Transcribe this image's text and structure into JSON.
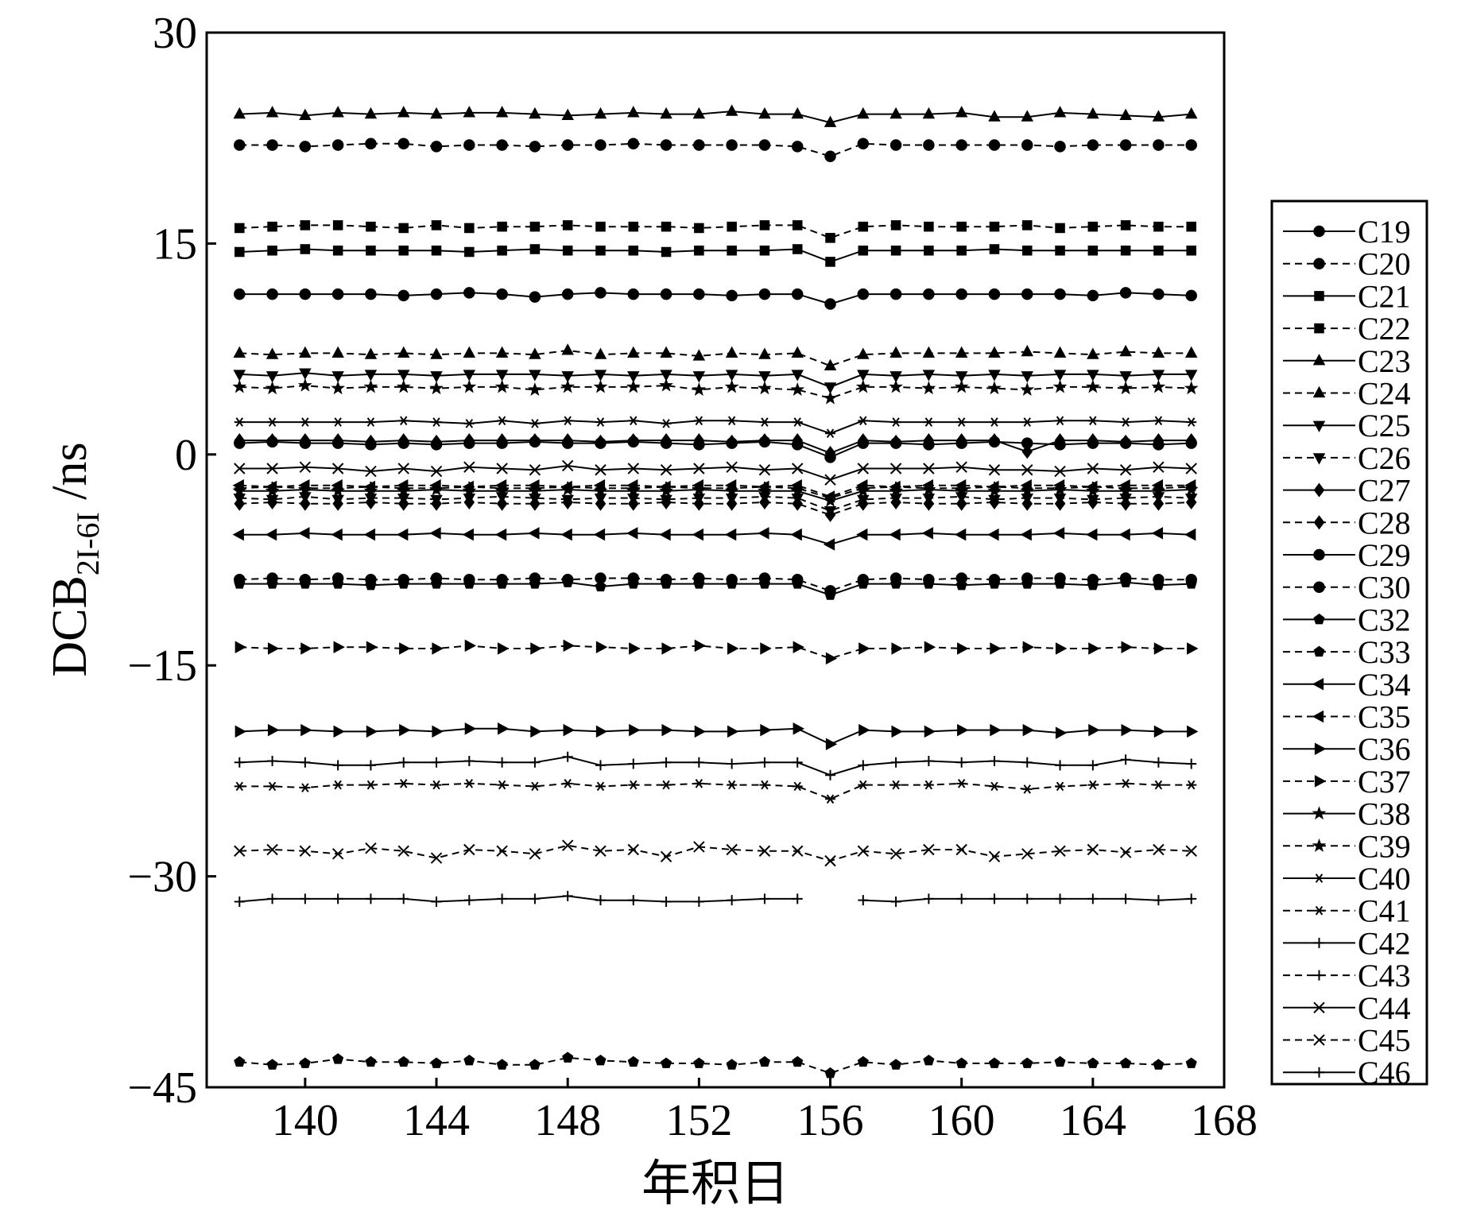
{
  "chart_data": {
    "type": "line",
    "title": "",
    "xlabel": "年积日",
    "ylabel": {
      "main": "DCB",
      "sub": "2I-6I",
      "unit": " /ns"
    },
    "xlim": [
      137,
      168
    ],
    "ylim": [
      -45,
      30
    ],
    "xticks": [
      "140",
      "144",
      "148",
      "152",
      "156",
      "160",
      "164",
      "168"
    ],
    "yticks": [
      "30",
      "15",
      "0",
      "−15",
      "−30",
      "−45"
    ],
    "grid": false,
    "legend_position": "right",
    "x": [
      138,
      139,
      140,
      141,
      142,
      143,
      144,
      145,
      146,
      147,
      148,
      149,
      150,
      151,
      152,
      153,
      154,
      155,
      156,
      157,
      158,
      159,
      160,
      161,
      162,
      163,
      164,
      165,
      166,
      167
    ],
    "series": [
      {
        "name": "C19",
        "marker": "circle",
        "dash": false,
        "base": 0.8,
        "values": [
          0.8,
          0.9,
          0.8,
          0.8,
          0.7,
          0.8,
          0.7,
          0.8,
          0.8,
          0.9,
          0.8,
          0.8,
          0.9,
          0.8,
          0.7,
          0.8,
          0.9,
          0.7,
          -0.2,
          0.8,
          0.8,
          0.7,
          0.8,
          0.9,
          0.8,
          0.7,
          0.8,
          0.8,
          0.7,
          0.8
        ]
      },
      {
        "name": "C20",
        "marker": "circle",
        "dash": true,
        "base": 22.0,
        "values": [
          22.0,
          22.0,
          21.9,
          22.0,
          22.1,
          22.1,
          21.9,
          22.0,
          22.0,
          21.9,
          22.0,
          22.0,
          22.1,
          22.0,
          22.0,
          22.0,
          22.0,
          21.9,
          21.2,
          22.1,
          22.0,
          22.0,
          22.0,
          22.0,
          22.0,
          21.9,
          22.0,
          22.0,
          22.0,
          22.0
        ]
      },
      {
        "name": "C21",
        "marker": "square",
        "dash": false,
        "base": 14.5,
        "values": [
          14.4,
          14.5,
          14.6,
          14.5,
          14.5,
          14.5,
          14.5,
          14.4,
          14.5,
          14.6,
          14.5,
          14.5,
          14.5,
          14.4,
          14.5,
          14.5,
          14.5,
          14.6,
          13.7,
          14.5,
          14.5,
          14.5,
          14.5,
          14.6,
          14.5,
          14.5,
          14.5,
          14.5,
          14.5,
          14.5
        ]
      },
      {
        "name": "C22",
        "marker": "square",
        "dash": true,
        "base": 16.2,
        "values": [
          16.1,
          16.2,
          16.3,
          16.3,
          16.2,
          16.1,
          16.3,
          16.1,
          16.2,
          16.2,
          16.3,
          16.2,
          16.2,
          16.2,
          16.1,
          16.2,
          16.3,
          16.3,
          15.4,
          16.2,
          16.3,
          16.2,
          16.2,
          16.2,
          16.3,
          16.1,
          16.2,
          16.3,
          16.2,
          16.2
        ]
      },
      {
        "name": "C23",
        "marker": "triangle-up",
        "dash": false,
        "base": 24.2,
        "values": [
          24.2,
          24.3,
          24.1,
          24.3,
          24.2,
          24.3,
          24.2,
          24.3,
          24.3,
          24.2,
          24.1,
          24.2,
          24.3,
          24.2,
          24.2,
          24.4,
          24.2,
          24.2,
          23.6,
          24.2,
          24.2,
          24.2,
          24.3,
          24.0,
          24.0,
          24.3,
          24.2,
          24.1,
          24.0,
          24.2
        ]
      },
      {
        "name": "C24",
        "marker": "triangle-up",
        "dash": true,
        "base": 7.2,
        "values": [
          7.2,
          7.1,
          7.2,
          7.2,
          7.1,
          7.2,
          7.1,
          7.2,
          7.2,
          7.1,
          7.4,
          7.1,
          7.2,
          7.2,
          7.0,
          7.2,
          7.1,
          7.2,
          6.3,
          7.1,
          7.2,
          7.2,
          7.2,
          7.2,
          7.3,
          7.2,
          7.1,
          7.3,
          7.2,
          7.2
        ]
      },
      {
        "name": "C25",
        "marker": "triangle-down",
        "dash": false,
        "base": 5.7,
        "values": [
          5.7,
          5.6,
          5.8,
          5.6,
          5.7,
          5.7,
          5.6,
          5.7,
          5.7,
          5.7,
          5.6,
          5.7,
          5.6,
          5.7,
          5.6,
          5.7,
          5.6,
          5.7,
          4.8,
          5.7,
          5.6,
          5.7,
          5.6,
          5.7,
          5.6,
          5.7,
          5.7,
          5.6,
          5.7,
          5.7
        ]
      },
      {
        "name": "C26",
        "marker": "triangle-down",
        "dash": true,
        "base": -3.1,
        "values": [
          -3.1,
          -3.2,
          -3.0,
          -3.2,
          -3.1,
          -3.1,
          -3.2,
          -3.1,
          -3.0,
          -3.1,
          -3.2,
          -3.1,
          -3.1,
          -3.2,
          -3.1,
          -3.1,
          -3.0,
          -3.1,
          -4.0,
          -3.2,
          -3.1,
          -3.1,
          -3.0,
          -3.2,
          -3.1,
          -3.1,
          -3.2,
          -3.1,
          -3.0,
          -3.1
        ]
      },
      {
        "name": "C27",
        "marker": "diamond",
        "dash": false,
        "base": 1.0,
        "values": [
          1.0,
          1.0,
          1.0,
          1.0,
          0.9,
          1.0,
          0.9,
          1.0,
          1.0,
          1.0,
          1.0,
          0.9,
          1.0,
          1.0,
          1.0,
          0.9,
          1.0,
          1.0,
          0.1,
          1.0,
          0.9,
          1.0,
          1.0,
          1.0,
          0.2,
          1.0,
          1.0,
          0.9,
          1.0,
          1.0
        ]
      },
      {
        "name": "C28",
        "marker": "diamond",
        "dash": true,
        "base": -3.5,
        "values": [
          -3.5,
          -3.4,
          -3.5,
          -3.5,
          -3.4,
          -3.5,
          -3.5,
          -3.4,
          -3.5,
          -3.5,
          -3.4,
          -3.5,
          -3.5,
          -3.4,
          -3.5,
          -3.5,
          -3.4,
          -3.5,
          -4.3,
          -3.5,
          -3.4,
          -3.5,
          -3.5,
          -3.4,
          -3.5,
          -3.5,
          -3.4,
          -3.5,
          -3.5,
          -3.4
        ]
      },
      {
        "name": "C29",
        "marker": "circle",
        "dash": false,
        "base": 11.4,
        "values": [
          11.4,
          11.4,
          11.4,
          11.4,
          11.4,
          11.3,
          11.4,
          11.5,
          11.4,
          11.2,
          11.4,
          11.5,
          11.4,
          11.4,
          11.4,
          11.3,
          11.4,
          11.4,
          10.7,
          11.4,
          11.4,
          11.4,
          11.4,
          11.4,
          11.4,
          11.4,
          11.3,
          11.5,
          11.4,
          11.3
        ]
      },
      {
        "name": "C30",
        "marker": "circle",
        "dash": true,
        "base": -8.9,
        "values": [
          -8.9,
          -8.8,
          -8.9,
          -8.8,
          -8.9,
          -8.9,
          -8.8,
          -8.9,
          -8.9,
          -8.8,
          -8.9,
          -8.8,
          -8.8,
          -8.9,
          -8.8,
          -8.9,
          -8.8,
          -8.9,
          -9.7,
          -8.9,
          -8.8,
          -8.9,
          -8.8,
          -8.9,
          -8.8,
          -8.8,
          -8.9,
          -8.8,
          -8.9,
          -8.9
        ]
      },
      {
        "name": "C32",
        "marker": "pentagon",
        "dash": false,
        "base": -9.2,
        "values": [
          -9.2,
          -9.2,
          -9.2,
          -9.2,
          -9.3,
          -9.2,
          -9.2,
          -9.2,
          -9.2,
          -9.2,
          -9.1,
          -9.4,
          -9.2,
          -9.2,
          -9.2,
          -9.2,
          -9.2,
          -9.2,
          -10.0,
          -9.2,
          -9.2,
          -9.2,
          -9.3,
          -9.2,
          -9.2,
          -9.2,
          -9.3,
          -9.1,
          -9.3,
          -9.2
        ]
      },
      {
        "name": "C33",
        "marker": "pentagon",
        "dash": true,
        "base": -43.3,
        "values": [
          -43.2,
          -43.4,
          -43.3,
          -43.0,
          -43.2,
          -43.2,
          -43.3,
          -43.1,
          -43.4,
          -43.4,
          -42.9,
          -43.1,
          -43.2,
          -43.3,
          -43.3,
          -43.4,
          -43.2,
          -43.2,
          -44.0,
          -43.2,
          -43.4,
          -43.1,
          -43.3,
          -43.3,
          -43.3,
          -43.2,
          -43.3,
          -43.3,
          -43.4,
          -43.3
        ]
      },
      {
        "name": "C34",
        "marker": "triangle-left",
        "dash": false,
        "base": -5.7,
        "values": [
          -5.7,
          -5.7,
          -5.6,
          -5.7,
          -5.7,
          -5.7,
          -5.6,
          -5.7,
          -5.7,
          -5.6,
          -5.7,
          -5.7,
          -5.6,
          -5.7,
          -5.7,
          -5.7,
          -5.6,
          -5.7,
          -6.4,
          -5.7,
          -5.7,
          -5.6,
          -5.7,
          -5.7,
          -5.7,
          -5.6,
          -5.7,
          -5.7,
          -5.6,
          -5.7
        ]
      },
      {
        "name": "C35",
        "marker": "triangle-left",
        "dash": true,
        "base": -2.2,
        "values": [
          -2.2,
          -2.3,
          -2.2,
          -2.2,
          -2.3,
          -2.2,
          -2.2,
          -2.3,
          -2.2,
          -2.2,
          -2.3,
          -2.2,
          -2.2,
          -2.3,
          -2.2,
          -2.2,
          -2.3,
          -2.2,
          -3.0,
          -2.2,
          -2.3,
          -2.2,
          -2.2,
          -2.3,
          -2.2,
          -2.2,
          -2.3,
          -2.2,
          -2.2,
          -2.2
        ]
      },
      {
        "name": "C36",
        "marker": "triangle-right",
        "dash": false,
        "base": -19.7,
        "values": [
          -19.7,
          -19.6,
          -19.6,
          -19.7,
          -19.7,
          -19.6,
          -19.7,
          -19.5,
          -19.5,
          -19.7,
          -19.6,
          -19.7,
          -19.6,
          -19.6,
          -19.7,
          -19.7,
          -19.6,
          -19.5,
          -20.6,
          -19.6,
          -19.7,
          -19.7,
          -19.6,
          -19.6,
          -19.6,
          -19.8,
          -19.6,
          -19.6,
          -19.7,
          -19.7
        ]
      },
      {
        "name": "C37",
        "marker": "triangle-right",
        "dash": true,
        "base": -13.8,
        "values": [
          -13.7,
          -13.8,
          -13.8,
          -13.7,
          -13.7,
          -13.8,
          -13.8,
          -13.6,
          -13.8,
          -13.8,
          -13.6,
          -13.7,
          -13.8,
          -13.8,
          -13.6,
          -13.8,
          -13.8,
          -13.7,
          -14.5,
          -13.8,
          -13.8,
          -13.7,
          -13.8,
          -13.8,
          -13.7,
          -13.8,
          -13.8,
          -13.7,
          -13.8,
          -13.8
        ]
      },
      {
        "name": "C38",
        "marker": "star",
        "dash": false,
        "base": -2.6,
        "values": [
          -2.6,
          -2.6,
          -2.5,
          -2.6,
          -2.6,
          -2.6,
          -2.5,
          -2.6,
          -2.6,
          -2.6,
          -2.5,
          -2.6,
          -2.6,
          -2.6,
          -2.5,
          -2.6,
          -2.6,
          -2.6,
          -3.3,
          -2.6,
          -2.6,
          -2.5,
          -2.6,
          -2.6,
          -2.6,
          -2.5,
          -2.6,
          -2.6,
          -2.6,
          -2.5
        ]
      },
      {
        "name": "C39",
        "marker": "star",
        "dash": true,
        "base": 4.8,
        "values": [
          4.8,
          4.7,
          4.9,
          4.7,
          4.8,
          4.8,
          4.7,
          4.8,
          4.8,
          4.6,
          4.8,
          4.8,
          4.8,
          4.9,
          4.6,
          4.8,
          4.7,
          4.6,
          4.0,
          4.8,
          4.8,
          4.7,
          4.8,
          4.7,
          4.6,
          4.8,
          4.8,
          4.7,
          4.8,
          4.7
        ]
      },
      {
        "name": "C40",
        "marker": "asterisk",
        "dash": false,
        "base": 2.3,
        "values": [
          2.3,
          2.3,
          2.3,
          2.3,
          2.3,
          2.4,
          2.3,
          2.2,
          2.4,
          2.2,
          2.4,
          2.3,
          2.4,
          2.2,
          2.4,
          2.4,
          2.3,
          2.3,
          1.5,
          2.4,
          2.3,
          2.3,
          2.3,
          2.3,
          2.3,
          2.4,
          2.4,
          2.3,
          2.4,
          2.3
        ]
      },
      {
        "name": "C41",
        "marker": "asterisk",
        "dash": true,
        "base": -23.6,
        "values": [
          -23.6,
          -23.6,
          -23.7,
          -23.5,
          -23.5,
          -23.4,
          -23.5,
          -23.4,
          -23.5,
          -23.6,
          -23.4,
          -23.6,
          -23.5,
          -23.5,
          -23.4,
          -23.5,
          -23.5,
          -23.6,
          -24.5,
          -23.5,
          -23.5,
          -23.5,
          -23.4,
          -23.6,
          -23.8,
          -23.6,
          -23.5,
          -23.4,
          -23.5,
          -23.5
        ]
      },
      {
        "name": "C42",
        "marker": "plus",
        "dash": false,
        "base": -21.9,
        "values": [
          -21.9,
          -21.8,
          -21.9,
          -22.1,
          -22.1,
          -21.9,
          -21.9,
          -21.8,
          -21.9,
          -21.9,
          -21.5,
          -22.1,
          -22.0,
          -21.9,
          -21.9,
          -22.0,
          -21.9,
          -21.9,
          -22.8,
          -22.1,
          -21.9,
          -21.8,
          -21.9,
          -21.8,
          -21.9,
          -22.1,
          -22.1,
          -21.7,
          -21.9,
          -22.0
        ]
      },
      {
        "name": "C43",
        "marker": "plus",
        "dash": true,
        "base": -2.4,
        "values": [
          -2.4,
          -2.3,
          -2.4,
          -2.4,
          -2.3,
          -2.4,
          -2.4,
          -2.3,
          -2.4,
          -2.4,
          -2.3,
          -2.4,
          -2.4,
          -2.3,
          -2.4,
          -2.4,
          -2.3,
          -2.4,
          -3.1,
          -2.4,
          -2.3,
          -2.4,
          -2.4,
          -2.3,
          -2.4,
          -2.4,
          -2.3,
          -2.4,
          -2.4,
          -2.3
        ]
      },
      {
        "name": "C44",
        "marker": "x",
        "dash": false,
        "base": -1.0,
        "values": [
          -1.0,
          -1.0,
          -0.9,
          -1.0,
          -1.2,
          -1.0,
          -1.2,
          -0.9,
          -1.0,
          -1.1,
          -0.8,
          -1.1,
          -1.0,
          -1.1,
          -1.0,
          -0.9,
          -1.1,
          -1.0,
          -1.8,
          -1.0,
          -1.0,
          -1.0,
          -0.9,
          -1.1,
          -1.1,
          -1.2,
          -1.0,
          -1.1,
          -0.9,
          -1.0
        ]
      },
      {
        "name": "C45",
        "marker": "x",
        "dash": true,
        "base": -28.2,
        "values": [
          -28.2,
          -28.1,
          -28.2,
          -28.4,
          -28.0,
          -28.2,
          -28.7,
          -28.1,
          -28.2,
          -28.4,
          -27.8,
          -28.2,
          -28.1,
          -28.6,
          -27.9,
          -28.1,
          -28.2,
          -28.2,
          -28.9,
          -28.2,
          -28.4,
          -28.1,
          -28.1,
          -28.6,
          -28.4,
          -28.2,
          -28.1,
          -28.3,
          -28.1,
          -28.2
        ]
      },
      {
        "name": "C46",
        "marker": "plus",
        "dash": false,
        "base": -31.8,
        "values": [
          -31.8,
          -31.6,
          -31.6,
          -31.6,
          -31.6,
          -31.6,
          -31.8,
          -31.7,
          -31.6,
          -31.6,
          -31.4,
          -31.7,
          -31.7,
          -31.8,
          -31.8,
          -31.7,
          -31.6,
          -31.6,
          null,
          -31.7,
          -31.8,
          -31.6,
          -31.6,
          -31.6,
          -31.6,
          -31.6,
          -31.6,
          -31.6,
          -31.7,
          -31.6
        ]
      }
    ]
  }
}
